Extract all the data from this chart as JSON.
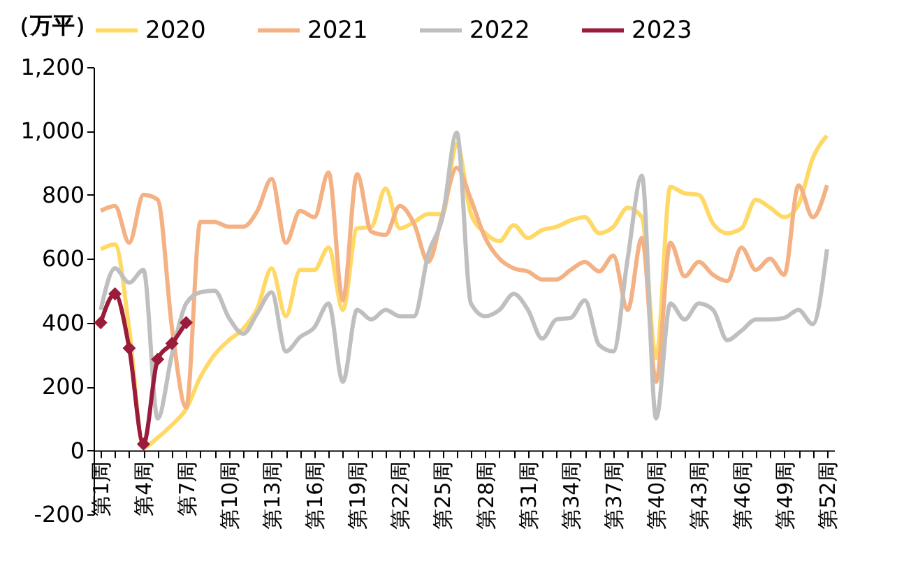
{
  "chart_data": {
    "type": "line",
    "ylabel": "（万平）",
    "categories": [
      "第1周",
      null,
      null,
      "第4周",
      null,
      null,
      "第7周",
      null,
      null,
      "第10周",
      null,
      null,
      "第13周",
      null,
      null,
      "第16周",
      null,
      null,
      "第19周",
      null,
      null,
      "第22周",
      null,
      null,
      "第25周",
      null,
      null,
      "第28周",
      null,
      null,
      "第31周",
      null,
      null,
      "第34周",
      null,
      null,
      "第37周",
      null,
      null,
      "第40周",
      null,
      null,
      "第43周",
      null,
      null,
      "第46周",
      null,
      null,
      "第49周",
      null,
      null,
      "第52周"
    ],
    "series": [
      {
        "name": "2020",
        "color": "#ffd966",
        "marker": "none",
        "values": [
          630,
          645,
          380,
          10,
          40,
          80,
          130,
          230,
          300,
          345,
          380,
          445,
          570,
          420,
          565,
          565,
          635,
          440,
          695,
          700,
          820,
          695,
          715,
          740,
          740,
          960,
          740,
          680,
          655,
          705,
          665,
          690,
          700,
          720,
          730,
          680,
          700,
          760,
          730,
          290,
          825,
          805,
          800,
          710,
          680,
          695,
          785,
          760,
          730,
          770,
          915,
          985
        ]
      },
      {
        "name": "2021",
        "color": "#f4b183",
        "marker": "none",
        "values": [
          750,
          765,
          650,
          800,
          785,
          385,
          135,
          715,
          715,
          700,
          700,
          750,
          850,
          650,
          750,
          730,
          870,
          470,
          865,
          685,
          675,
          765,
          710,
          590,
          740,
          885,
          785,
          665,
          600,
          570,
          560,
          535,
          535,
          565,
          590,
          560,
          610,
          440,
          665,
          215,
          650,
          545,
          590,
          550,
          530,
          635,
          565,
          600,
          550,
          830,
          730,
          830
        ]
      },
      {
        "name": "2022",
        "color": "#bfbfbf",
        "marker": "none",
        "values": [
          440,
          570,
          525,
          565,
          100,
          300,
          460,
          495,
          500,
          415,
          365,
          430,
          495,
          310,
          355,
          385,
          460,
          215,
          440,
          410,
          440,
          420,
          420,
          615,
          730,
          995,
          460,
          420,
          440,
          490,
          440,
          350,
          410,
          415,
          470,
          330,
          310,
          600,
          860,
          100,
          460,
          410,
          460,
          440,
          345,
          375,
          410,
          410,
          415,
          440,
          395,
          630
        ]
      },
      {
        "name": "2023",
        "color": "#9b1b3a",
        "marker": "diamond",
        "values": [
          400,
          490,
          320,
          20,
          285,
          335,
          400,
          null,
          null,
          null,
          null,
          null,
          null,
          null,
          null,
          null,
          null,
          null,
          null,
          null,
          null,
          null,
          null,
          null,
          null,
          null,
          null,
          null,
          null,
          null,
          null,
          null,
          null,
          null,
          null,
          null,
          null,
          null,
          null,
          null,
          null,
          null,
          null,
          null,
          null,
          null,
          null,
          null,
          null,
          null,
          null,
          null
        ]
      }
    ],
    "ylim": [
      -200,
      1200
    ],
    "yticks": [
      {
        "value": -200,
        "label": "-200"
      },
      0,
      200,
      400,
      600,
      800,
      {
        "value": 1000,
        "label": "1,000"
      },
      {
        "value": 1200,
        "label": "1,200"
      }
    ],
    "legend": "top",
    "grid": false
  }
}
